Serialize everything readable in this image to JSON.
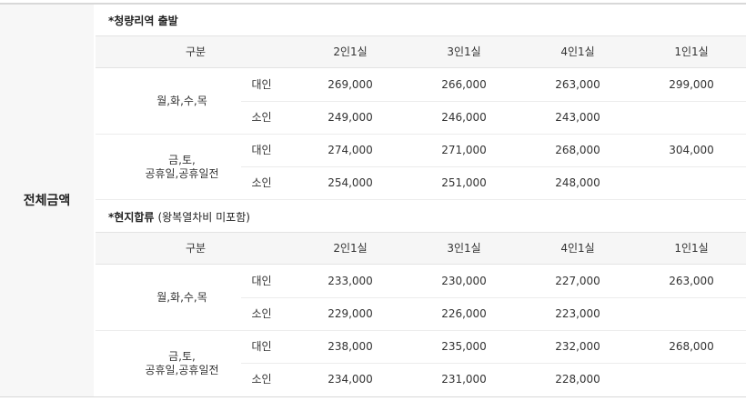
{
  "side_label": "전체금액",
  "sections": [
    {
      "title": "*청량리역 출발",
      "note": "",
      "headers": [
        "구분",
        "2인1실",
        "3인1실",
        "4인1실",
        "1인1실"
      ],
      "groups": [
        {
          "label_lines": [
            "월,화,수,목"
          ],
          "rows": [
            {
              "type": "대인",
              "v2": "269,000",
              "v3": "266,000",
              "v4": "263,000",
              "v1": "299,000"
            },
            {
              "type": "소인",
              "v2": "249,000",
              "v3": "246,000",
              "v4": "243,000",
              "v1": ""
            }
          ]
        },
        {
          "label_lines": [
            "금,토,",
            "공휴일,공휴일전"
          ],
          "rows": [
            {
              "type": "대인",
              "v2": "274,000",
              "v3": "271,000",
              "v4": "268,000",
              "v1": "304,000"
            },
            {
              "type": "소인",
              "v2": "254,000",
              "v3": "251,000",
              "v4": "248,000",
              "v1": ""
            }
          ]
        }
      ]
    },
    {
      "title": "*현지합류",
      "note": "(왕복열차비 미포함)",
      "headers": [
        "구분",
        "2인1실",
        "3인1실",
        "4인1실",
        "1인1실"
      ],
      "groups": [
        {
          "label_lines": [
            "월,화,수,목"
          ],
          "rows": [
            {
              "type": "대인",
              "v2": "233,000",
              "v3": "230,000",
              "v4": "227,000",
              "v1": "263,000"
            },
            {
              "type": "소인",
              "v2": "229,000",
              "v3": "226,000",
              "v4": "223,000",
              "v1": ""
            }
          ]
        },
        {
          "label_lines": [
            "금,토,",
            "공휴일,공휴일전"
          ],
          "rows": [
            {
              "type": "대인",
              "v2": "238,000",
              "v3": "235,000",
              "v4": "232,000",
              "v1": "268,000"
            },
            {
              "type": "소인",
              "v2": "234,000",
              "v3": "231,000",
              "v4": "228,000",
              "v1": ""
            }
          ]
        }
      ]
    }
  ]
}
